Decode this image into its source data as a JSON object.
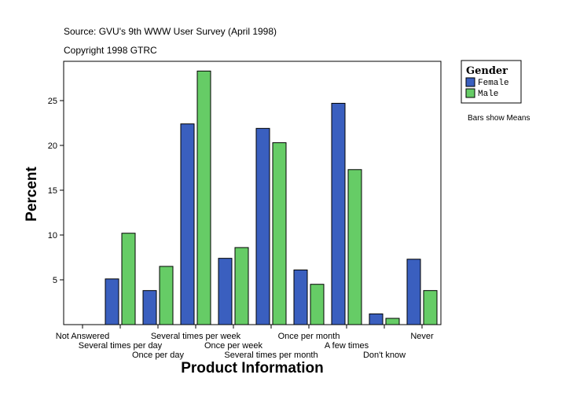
{
  "source_line": "Source: GVU's 9th WWW User Survey (April 1998)",
  "copyright_line": "Copyright 1998 GTRC",
  "note": "Bars show Means",
  "legend": {
    "title": "Gender",
    "items": [
      {
        "label": "Female",
        "color": "#3a5fbf"
      },
      {
        "label": "Male",
        "color": "#66cc66"
      }
    ]
  },
  "chart_data": {
    "type": "bar",
    "title": "",
    "xlabel": "Product Information",
    "ylabel": "Percent",
    "ylim": [
      0,
      30
    ],
    "yticks": [
      5,
      10,
      15,
      20,
      25
    ],
    "categories": [
      "Not Answered",
      "Several times per day",
      "Once per day",
      "Several times per week",
      "Once per week",
      "Several times per month",
      "Once per month",
      "A few times",
      "Don't know",
      "Never"
    ],
    "series": [
      {
        "name": "Female",
        "color": "#3a5fbf",
        "values": [
          0,
          5.1,
          3.8,
          22.4,
          7.4,
          21.9,
          6.1,
          24.7,
          1.2,
          7.3
        ]
      },
      {
        "name": "Male",
        "color": "#66cc66",
        "values": [
          0,
          10.2,
          6.5,
          28.3,
          8.6,
          20.3,
          4.5,
          17.3,
          0.7,
          3.8
        ]
      }
    ],
    "legend_position": "right"
  }
}
